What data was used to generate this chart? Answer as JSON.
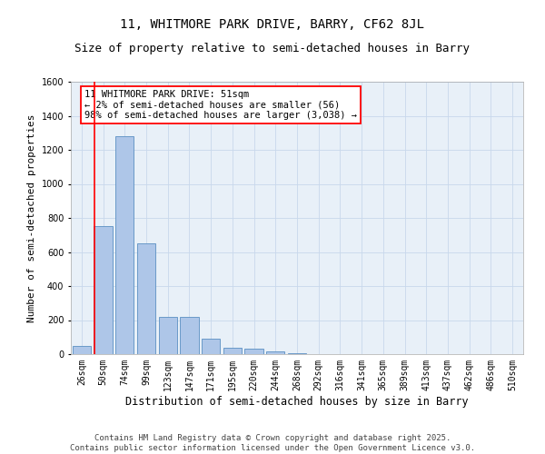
{
  "title": "11, WHITMORE PARK DRIVE, BARRY, CF62 8JL",
  "subtitle": "Size of property relative to semi-detached houses in Barry",
  "xlabel": "Distribution of semi-detached houses by size in Barry",
  "ylabel": "Number of semi-detached properties",
  "categories": [
    "26sqm",
    "50sqm",
    "74sqm",
    "99sqm",
    "123sqm",
    "147sqm",
    "171sqm",
    "195sqm",
    "220sqm",
    "244sqm",
    "268sqm",
    "292sqm",
    "316sqm",
    "341sqm",
    "365sqm",
    "389sqm",
    "413sqm",
    "437sqm",
    "462sqm",
    "486sqm",
    "510sqm"
  ],
  "bar_values": [
    50,
    750,
    1280,
    650,
    220,
    220,
    90,
    35,
    30,
    15,
    5,
    0,
    0,
    0,
    0,
    0,
    0,
    0,
    0,
    0,
    0
  ],
  "bar_color": "#aec6e8",
  "bar_edge_color": "#5a8fc2",
  "vline_color": "red",
  "vline_xindex": 0.58,
  "annotation_text": "11 WHITMORE PARK DRIVE: 51sqm\n← 2% of semi-detached houses are smaller (56)\n98% of semi-detached houses are larger (3,038) →",
  "annotation_box_color": "red",
  "annotation_text_color": "black",
  "ylim": [
    0,
    1600
  ],
  "yticks": [
    0,
    200,
    400,
    600,
    800,
    1000,
    1200,
    1400,
    1600
  ],
  "grid_color": "#c8d8ec",
  "bg_color": "#e8f0f8",
  "footer": "Contains HM Land Registry data © Crown copyright and database right 2025.\nContains public sector information licensed under the Open Government Licence v3.0.",
  "title_fontsize": 10,
  "subtitle_fontsize": 9,
  "xlabel_fontsize": 8.5,
  "ylabel_fontsize": 8,
  "tick_fontsize": 7,
  "annot_fontsize": 7.5,
  "footer_fontsize": 6.5
}
